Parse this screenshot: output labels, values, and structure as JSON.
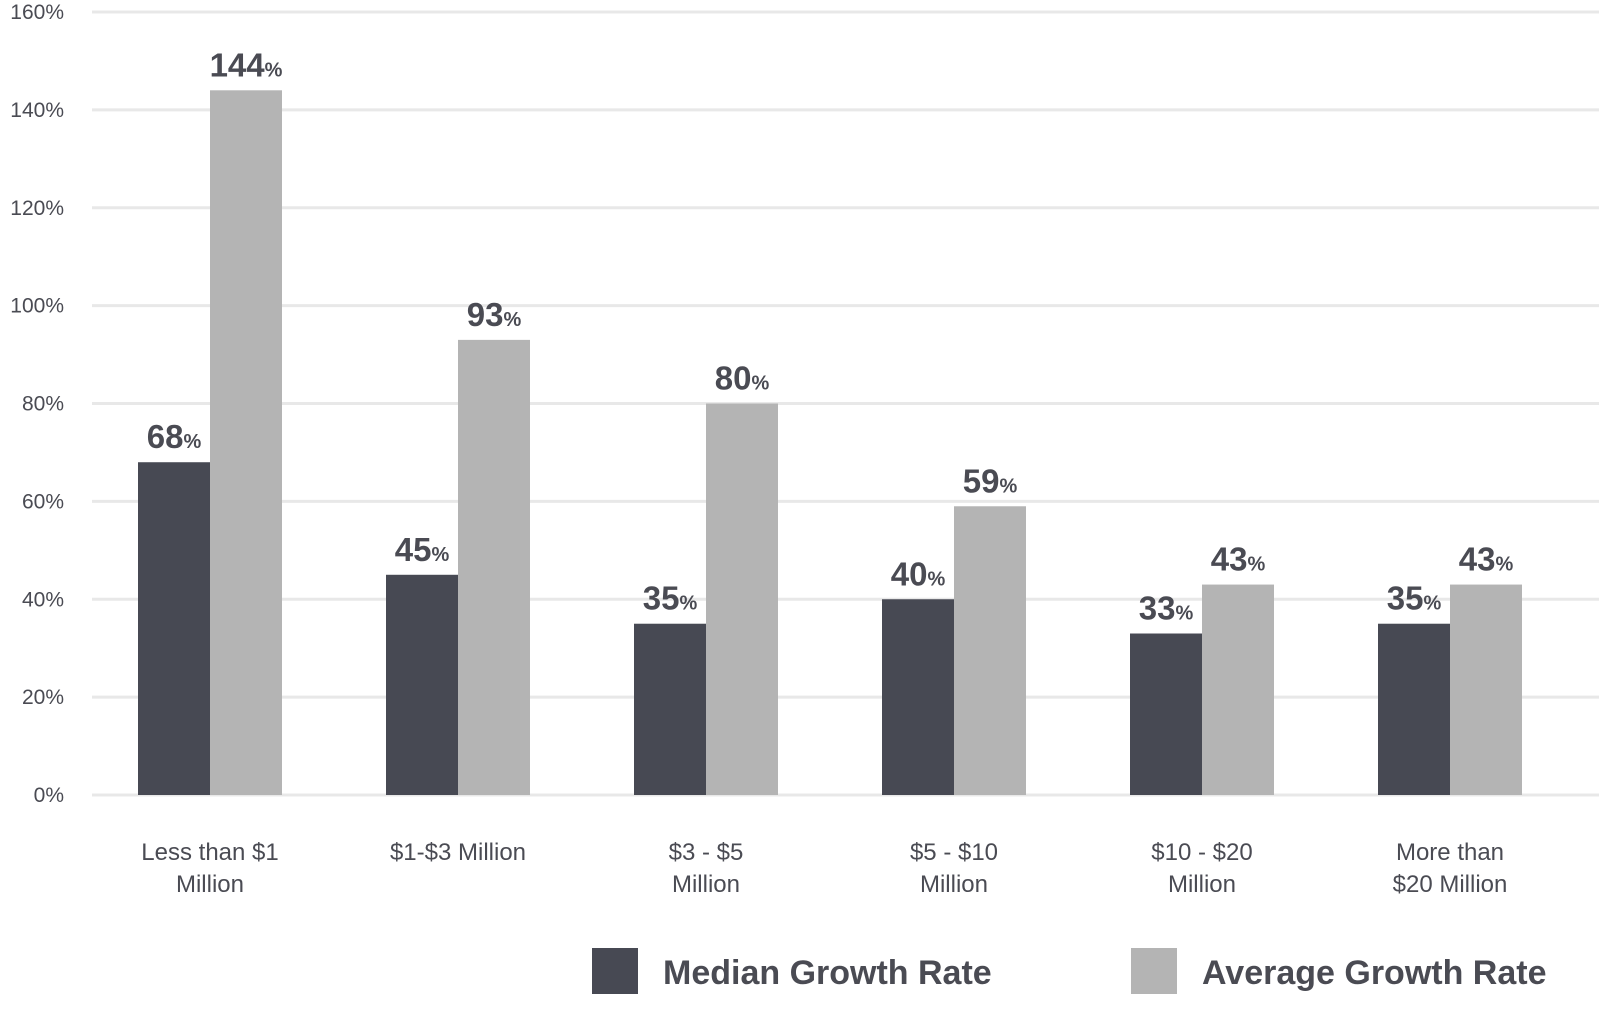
{
  "chart_data": {
    "type": "bar",
    "categories": [
      [
        "Less than $1",
        "Million"
      ],
      [
        "$1-$3 Million"
      ],
      [
        "$3 - $5",
        "Million"
      ],
      [
        "$5 - $10",
        "Million"
      ],
      [
        "$10 - $20",
        "Million"
      ],
      [
        "More than",
        "$20 Million"
      ]
    ],
    "series": [
      {
        "name": "Median Growth Rate",
        "values": [
          68,
          45,
          35,
          40,
          33,
          35
        ],
        "color": "#474953"
      },
      {
        "name": "Average Growth Rate",
        "values": [
          144,
          93,
          80,
          59,
          43,
          43
        ],
        "color": "#b4b4b4"
      }
    ],
    "value_suffix": "%",
    "yticks": [
      "0%",
      "20%",
      "40%",
      "60%",
      "80%",
      "100%",
      "120%",
      "140%",
      "160%"
    ],
    "ylim": [
      0,
      160
    ],
    "grid": true,
    "grid_color": "#e8e8e8",
    "text_color": "#4a4b53",
    "legend_position": "bottom"
  }
}
